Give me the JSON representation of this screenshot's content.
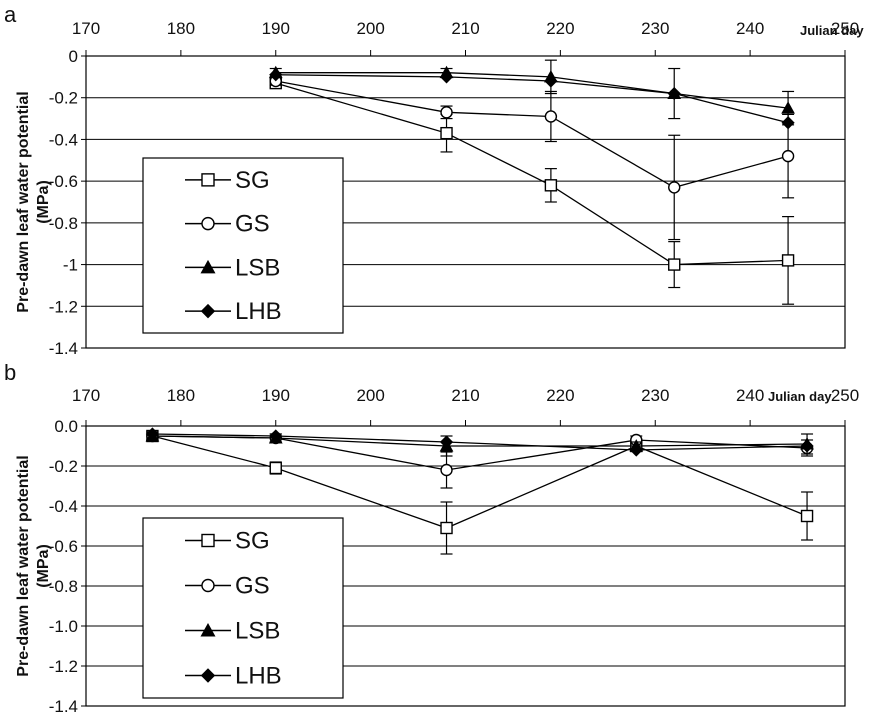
{
  "chart_data": [
    {
      "type": "line",
      "panel": "a",
      "xlabel": "Julian day",
      "ylabel_line1": "Pre-dawn leaf water potential",
      "ylabel_line2": "(MPa)",
      "xlim": [
        170,
        250
      ],
      "ylim": [
        -1.4,
        0
      ],
      "xticks": [
        "170",
        "180",
        "190",
        "200",
        "210",
        "220",
        "230",
        "240",
        "250"
      ],
      "yticks": [
        "0",
        "-0.2",
        "-0.4",
        "-0.6",
        "-0.8",
        "-1",
        "-1.2",
        "-1.4"
      ],
      "grid": true,
      "legend": "lower-left",
      "series": [
        {
          "name": "SG",
          "marker": "square-open",
          "x": [
            190,
            208,
            219,
            232,
            244
          ],
          "y": [
            -0.13,
            -0.37,
            -0.62,
            -1.0,
            -0.98
          ],
          "err": [
            0.02,
            0.09,
            0.08,
            0.11,
            0.21
          ]
        },
        {
          "name": "GS",
          "marker": "circle-open",
          "x": [
            190,
            208,
            219,
            232,
            244
          ],
          "y": [
            -0.12,
            -0.27,
            -0.29,
            -0.63,
            -0.48
          ],
          "err": [
            0.02,
            0.03,
            0.12,
            0.25,
            0.2
          ]
        },
        {
          "name": "LSB",
          "marker": "triangle-filled",
          "x": [
            190,
            208,
            219,
            232,
            244
          ],
          "y": [
            -0.08,
            -0.08,
            -0.1,
            -0.18,
            -0.25
          ],
          "err": [
            0.02,
            0.02,
            0.08,
            0.12,
            0.08
          ]
        },
        {
          "name": "LHB",
          "marker": "diamond-filled",
          "x": [
            190,
            208,
            219,
            232,
            244
          ],
          "y": [
            -0.09,
            -0.1,
            -0.12,
            -0.18,
            -0.32
          ],
          "err": [
            0,
            0,
            0,
            0,
            0
          ]
        }
      ]
    },
    {
      "type": "line",
      "panel": "b",
      "xlabel": "Julian day",
      "ylabel_line1": "Pre-dawn leaf water potential",
      "ylabel_line2": "(MPa)",
      "xlim": [
        170,
        250
      ],
      "ylim": [
        -1.4,
        0
      ],
      "xticks": [
        "170",
        "180",
        "190",
        "200",
        "210",
        "220",
        "230",
        "240",
        "250"
      ],
      "yticks": [
        "0.0",
        "-0.2",
        "-0.4",
        "-0.6",
        "-0.8",
        "-1.0",
        "-1.2",
        "-1.4"
      ],
      "grid": true,
      "legend": "lower-left",
      "series": [
        {
          "name": "SG",
          "marker": "square-open",
          "x": [
            177,
            190,
            208,
            228,
            246
          ],
          "y": [
            -0.05,
            -0.21,
            -0.51,
            -0.1,
            -0.45
          ],
          "err": [
            0.02,
            0.03,
            0.13,
            0.02,
            0.12
          ]
        },
        {
          "name": "GS",
          "marker": "circle-open",
          "x": [
            177,
            190,
            208,
            228,
            246
          ],
          "y": [
            -0.05,
            -0.06,
            -0.22,
            -0.07,
            -0.11
          ],
          "err": [
            0.02,
            0.02,
            0.09,
            0.02,
            0.04
          ]
        },
        {
          "name": "LSB",
          "marker": "triangle-filled",
          "x": [
            177,
            190,
            208,
            228,
            246
          ],
          "y": [
            -0.05,
            -0.06,
            -0.1,
            -0.1,
            -0.09
          ],
          "err": [
            0.02,
            0.02,
            0.05,
            0.02,
            0.05
          ]
        },
        {
          "name": "LHB",
          "marker": "diamond-filled",
          "x": [
            177,
            190,
            208,
            228,
            246
          ],
          "y": [
            -0.04,
            -0.05,
            -0.08,
            -0.12,
            -0.1
          ],
          "err": [
            0,
            0,
            0,
            0,
            0
          ]
        }
      ]
    }
  ]
}
